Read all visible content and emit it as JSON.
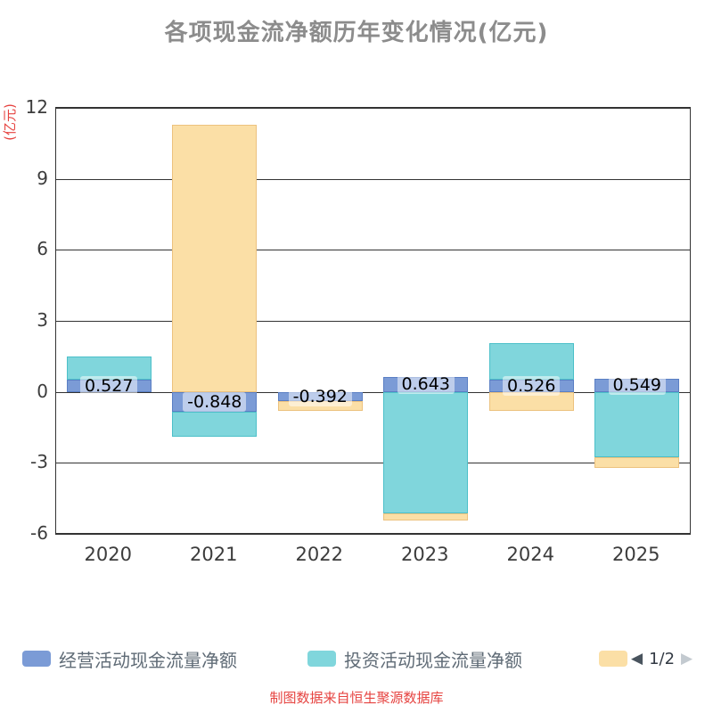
{
  "chart_data": {
    "type": "bar",
    "stacked": true,
    "title": "各项现金流净额历年变化情况(亿元)",
    "ylabel": "(亿元)",
    "xlabel": "",
    "categories": [
      "2020",
      "2021",
      "2022",
      "2023",
      "2024",
      "2025"
    ],
    "series": [
      {
        "name": "经营活动现金流量净额",
        "color": "#7b9bd6",
        "border_color": "#5a7fc4",
        "values": [
          0.527,
          -0.848,
          -0.392,
          0.643,
          0.526,
          0.549
        ],
        "data_labels": [
          "0.527",
          "-0.848",
          "-0.392",
          "0.643",
          "0.526",
          "0.549"
        ]
      },
      {
        "name": "投资活动现金流量净额",
        "color": "#80d6dc",
        "border_color": "#4cc0c9",
        "values": [
          0.95,
          -1.05,
          0,
          -5.15,
          1.55,
          -2.75
        ]
      },
      {
        "name": "",
        "color": "#fbdfa6",
        "border_color": "#ecc27e",
        "values": [
          0,
          11.3,
          -0.4,
          -0.3,
          -0.8,
          -0.45
        ]
      }
    ],
    "ylim": [
      -6,
      12
    ],
    "yticks": [
      12,
      9,
      6,
      3,
      0,
      -3,
      -6
    ],
    "grid": true,
    "legend_position": "bottom"
  },
  "legend": {
    "items": [
      {
        "label": "经营活动现金流量净额",
        "color": "#7b9bd6"
      },
      {
        "label": "投资活动现金流量净额",
        "color": "#80d6dc"
      },
      {
        "label": "",
        "color": "#fbdfa6"
      }
    ],
    "pager": {
      "prev": "◀",
      "page": "1/2",
      "next": "▶"
    }
  },
  "footer": "制图数据来自恒生聚源数据库"
}
